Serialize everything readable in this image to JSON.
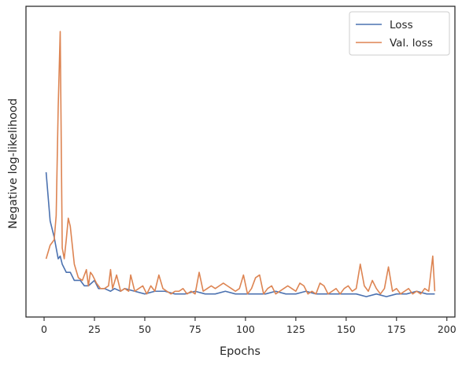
{
  "chart_data": {
    "type": "line",
    "title": "",
    "xlabel": "Epochs",
    "ylabel": "Negative log-likelihood",
    "xlim": [
      -9,
      204
    ],
    "ylim": [
      0,
      100
    ],
    "xticks": [
      0,
      25,
      50,
      75,
      100,
      125,
      150,
      175,
      200
    ],
    "yticks_shown": false,
    "grid": false,
    "legend_position": "top-right",
    "series": [
      {
        "name": "Loss",
        "color": "#4c72b0",
        "points": [
          [
            1,
            48
          ],
          [
            3,
            30
          ],
          [
            5,
            24
          ],
          [
            7,
            16
          ],
          [
            8,
            17
          ],
          [
            9,
            14
          ],
          [
            11,
            11
          ],
          [
            13,
            11
          ],
          [
            15,
            8
          ],
          [
            18,
            8
          ],
          [
            20,
            6
          ],
          [
            22,
            6
          ],
          [
            25,
            8
          ],
          [
            27,
            5
          ],
          [
            30,
            5
          ],
          [
            33,
            4
          ],
          [
            35,
            5
          ],
          [
            38,
            4
          ],
          [
            40,
            5
          ],
          [
            45,
            4
          ],
          [
            50,
            3
          ],
          [
            55,
            4
          ],
          [
            60,
            4
          ],
          [
            65,
            3
          ],
          [
            70,
            3
          ],
          [
            75,
            4
          ],
          [
            80,
            3
          ],
          [
            85,
            3
          ],
          [
            90,
            4
          ],
          [
            95,
            3
          ],
          [
            100,
            3
          ],
          [
            105,
            3
          ],
          [
            110,
            3
          ],
          [
            115,
            4
          ],
          [
            120,
            3
          ],
          [
            125,
            3
          ],
          [
            130,
            4
          ],
          [
            135,
            3
          ],
          [
            140,
            3
          ],
          [
            145,
            3
          ],
          [
            150,
            3
          ],
          [
            155,
            3
          ],
          [
            160,
            2
          ],
          [
            165,
            3
          ],
          [
            170,
            2
          ],
          [
            175,
            3
          ],
          [
            180,
            3
          ],
          [
            185,
            4
          ],
          [
            190,
            3
          ],
          [
            194,
            3
          ]
        ]
      },
      {
        "name": "Val. loss",
        "color": "#dd8452",
        "points": [
          [
            1,
            16
          ],
          [
            3,
            21
          ],
          [
            5,
            23
          ],
          [
            6,
            32
          ],
          [
            7,
            72
          ],
          [
            8,
            100
          ],
          [
            9,
            20
          ],
          [
            10,
            16
          ],
          [
            11,
            23
          ],
          [
            12,
            31
          ],
          [
            13,
            28
          ],
          [
            14,
            21
          ],
          [
            15,
            14
          ],
          [
            17,
            9
          ],
          [
            19,
            8
          ],
          [
            20,
            10
          ],
          [
            21,
            12
          ],
          [
            22,
            6
          ],
          [
            23,
            11
          ],
          [
            24,
            10
          ],
          [
            26,
            7
          ],
          [
            28,
            5
          ],
          [
            30,
            5
          ],
          [
            32,
            6
          ],
          [
            33,
            12
          ],
          [
            34,
            5
          ],
          [
            36,
            10
          ],
          [
            38,
            4
          ],
          [
            40,
            5
          ],
          [
            42,
            4
          ],
          [
            43,
            10
          ],
          [
            45,
            4
          ],
          [
            47,
            5
          ],
          [
            49,
            6
          ],
          [
            51,
            3
          ],
          [
            53,
            6
          ],
          [
            55,
            4
          ],
          [
            57,
            10
          ],
          [
            59,
            5
          ],
          [
            61,
            4
          ],
          [
            63,
            3
          ],
          [
            65,
            4
          ],
          [
            67,
            4
          ],
          [
            69,
            5
          ],
          [
            71,
            3
          ],
          [
            73,
            4
          ],
          [
            75,
            3
          ],
          [
            77,
            11
          ],
          [
            79,
            4
          ],
          [
            81,
            5
          ],
          [
            83,
            6
          ],
          [
            85,
            5
          ],
          [
            87,
            6
          ],
          [
            89,
            7
          ],
          [
            91,
            6
          ],
          [
            93,
            5
          ],
          [
            95,
            4
          ],
          [
            97,
            5
          ],
          [
            99,
            10
          ],
          [
            101,
            3
          ],
          [
            103,
            5
          ],
          [
            105,
            9
          ],
          [
            107,
            10
          ],
          [
            109,
            3
          ],
          [
            111,
            5
          ],
          [
            113,
            6
          ],
          [
            115,
            3
          ],
          [
            117,
            4
          ],
          [
            119,
            5
          ],
          [
            121,
            6
          ],
          [
            123,
            5
          ],
          [
            125,
            4
          ],
          [
            127,
            7
          ],
          [
            129,
            6
          ],
          [
            131,
            3
          ],
          [
            133,
            4
          ],
          [
            135,
            3
          ],
          [
            137,
            7
          ],
          [
            139,
            6
          ],
          [
            141,
            3
          ],
          [
            143,
            4
          ],
          [
            145,
            5
          ],
          [
            147,
            3
          ],
          [
            149,
            5
          ],
          [
            151,
            6
          ],
          [
            153,
            4
          ],
          [
            155,
            5
          ],
          [
            157,
            14
          ],
          [
            159,
            6
          ],
          [
            161,
            4
          ],
          [
            163,
            8
          ],
          [
            165,
            5
          ],
          [
            167,
            3
          ],
          [
            169,
            5
          ],
          [
            171,
            13
          ],
          [
            173,
            4
          ],
          [
            175,
            5
          ],
          [
            177,
            3
          ],
          [
            179,
            4
          ],
          [
            181,
            5
          ],
          [
            183,
            3
          ],
          [
            185,
            4
          ],
          [
            187,
            3
          ],
          [
            189,
            5
          ],
          [
            191,
            4
          ],
          [
            193,
            17
          ],
          [
            194,
            4
          ]
        ]
      }
    ]
  }
}
